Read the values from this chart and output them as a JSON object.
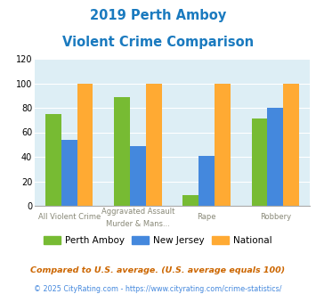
{
  "title_line1": "2019 Perth Amboy",
  "title_line2": "Violent Crime Comparison",
  "title_color": "#1a7abf",
  "cat_labels_top": [
    "",
    "Aggravated Assault",
    "",
    ""
  ],
  "cat_labels_bot": [
    "All Violent Crime",
    "Murder & Mans...",
    "Rape",
    "Robbery"
  ],
  "perth_amboy": [
    75,
    89,
    9,
    71
  ],
  "new_jersey": [
    54,
    49,
    41,
    80
  ],
  "national": [
    100,
    100,
    100,
    100
  ],
  "perth_color": "#77bb33",
  "nj_color": "#4488dd",
  "national_color": "#ffaa33",
  "ylim": [
    0,
    120
  ],
  "yticks": [
    0,
    20,
    40,
    60,
    80,
    100,
    120
  ],
  "bg_color": "#ddeef5",
  "legend_labels": [
    "Perth Amboy",
    "New Jersey",
    "National"
  ],
  "footnote1": "Compared to U.S. average. (U.S. average equals 100)",
  "footnote2": "© 2025 CityRating.com - https://www.cityrating.com/crime-statistics/",
  "footnote1_color": "#cc6600",
  "footnote2_color": "#4488dd"
}
